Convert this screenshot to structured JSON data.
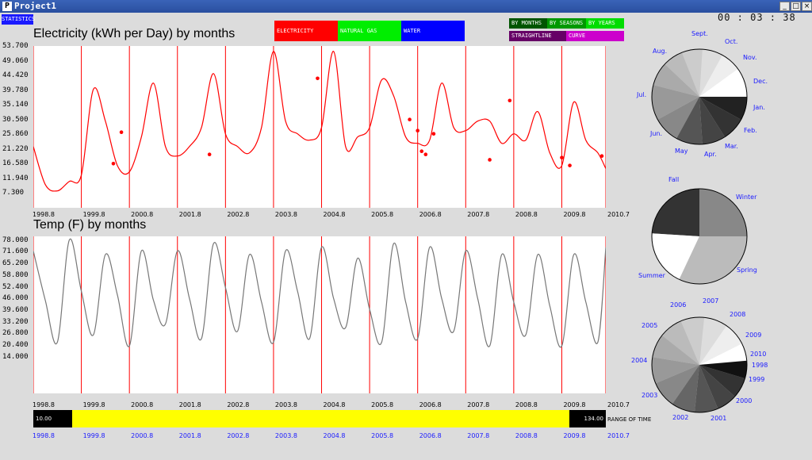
{
  "window": {
    "title": "Project1",
    "app_icon": "P",
    "controls": [
      "_",
      "□",
      "×"
    ]
  },
  "statistics_button": "STATISTICS",
  "clock": "00 : 03 : 38",
  "resource_buttons": [
    {
      "label": "ELECTRICITY",
      "color": "#ff0000"
    },
    {
      "label": "NATURAL GAS",
      "color": "#00ee00"
    },
    {
      "label": "WATER",
      "color": "#0000ff"
    }
  ],
  "mode_buttons": [
    {
      "label": "BY MONTHS",
      "color": "#005500"
    },
    {
      "label": "BY SEASONS",
      "color": "#009900"
    },
    {
      "label": "BY YEARS",
      "color": "#00dd00"
    }
  ],
  "style_buttons": [
    {
      "label": "STRAIGHTLINE",
      "color": "#660066"
    },
    {
      "label": "CURVE",
      "color": "#cc00cc"
    }
  ],
  "x_ticks": [
    "1998.8",
    "1999.8",
    "2000.8",
    "2001.8",
    "2002.8",
    "2003.8",
    "2004.8",
    "2005.8",
    "2006.8",
    "2007.8",
    "2008.8",
    "2009.8",
    "2010.7"
  ],
  "range": {
    "left": "10.00",
    "right": "134.00",
    "label": "RANGE OF TIME"
  },
  "chart_data": [
    {
      "type": "line",
      "title": "Electricity (kWh per Day) by months",
      "y_ticks": [
        "53.700",
        "49.060",
        "44.420",
        "39.780",
        "35.140",
        "30.500",
        "25.860",
        "21.220",
        "16.580",
        "11.940",
        "7.300"
      ],
      "ylim": [
        2.66,
        53.7
      ],
      "color": "#ff0000",
      "x": [
        0,
        3,
        6,
        9,
        12,
        15,
        18,
        21,
        24,
        27,
        30,
        33,
        36,
        39,
        42,
        45,
        48,
        51,
        54,
        57,
        60,
        63,
        66,
        69,
        72,
        75,
        78,
        81,
        84,
        87,
        90,
        93,
        96,
        99,
        102,
        105,
        108,
        111,
        114,
        117,
        120,
        123,
        126,
        129,
        132,
        135,
        138,
        141,
        143
      ],
      "y": [
        22,
        10,
        8,
        11,
        13,
        40,
        30,
        16,
        14,
        25,
        42,
        22,
        19,
        22,
        28,
        45,
        26,
        22,
        20,
        28,
        52,
        30,
        26,
        24,
        28,
        52,
        22,
        25,
        28,
        43,
        38,
        25,
        23,
        24,
        42,
        28,
        27,
        30,
        30,
        23,
        26,
        24,
        33,
        20,
        16,
        36,
        24,
        20,
        15
      ],
      "markers": [
        [
          20,
          16.6
        ],
        [
          22,
          26.5
        ],
        [
          44,
          19.5
        ],
        [
          71,
          43.5
        ],
        [
          94,
          30.5
        ],
        [
          96,
          27
        ],
        [
          97,
          20.5
        ],
        [
          98,
          19.5
        ],
        [
          100,
          26
        ],
        [
          114,
          17.8
        ],
        [
          119,
          36.5
        ],
        [
          132,
          18.5
        ],
        [
          134,
          16
        ],
        [
          142,
          19
        ]
      ]
    },
    {
      "type": "line",
      "title": "Temp (F) by months",
      "y_ticks": [
        "78.000",
        "71.600",
        "65.200",
        "58.800",
        "52.400",
        "46.000",
        "39.600",
        "33.200",
        "26.800",
        "20.400",
        "14.000"
      ],
      "ylim": [
        -6,
        80
      ],
      "color": "#777777",
      "x": [
        0,
        3,
        6,
        9,
        12,
        15,
        18,
        21,
        24,
        27,
        30,
        33,
        36,
        39,
        42,
        45,
        48,
        51,
        54,
        57,
        60,
        63,
        66,
        69,
        72,
        75,
        78,
        81,
        84,
        87,
        90,
        93,
        96,
        99,
        102,
        105,
        108,
        111,
        114,
        117,
        120,
        123,
        126,
        129,
        132,
        135,
        138,
        141,
        143
      ],
      "y": [
        72,
        45,
        22,
        78,
        50,
        26,
        70,
        48,
        20,
        72,
        45,
        32,
        72,
        46,
        24,
        76,
        52,
        28,
        70,
        44,
        22,
        72,
        50,
        24,
        74,
        46,
        30,
        68,
        40,
        22,
        76,
        44,
        24,
        74,
        46,
        28,
        72,
        46,
        20,
        70,
        44,
        26,
        70,
        42,
        20,
        70,
        44,
        22,
        74
      ]
    },
    {
      "type": "pie",
      "categories": [
        "Jan.",
        "Feb.",
        "Mar.",
        "Apr.",
        "May",
        "Jun.",
        "Jul.",
        "Aug.",
        "Sept.",
        "Oct.",
        "Nov.",
        "Dec."
      ],
      "values": [
        10,
        7,
        7,
        7,
        7,
        8,
        12,
        9,
        9,
        8,
        8,
        8
      ]
    },
    {
      "type": "pie",
      "categories": [
        "Winter",
        "Spring",
        "Summer",
        "Fall"
      ],
      "values": [
        24,
        19,
        32,
        25
      ]
    },
    {
      "type": "pie",
      "categories": [
        "1998",
        "1999",
        "2000",
        "2001",
        "2002",
        "2003",
        "2004",
        "2005",
        "2006",
        "2007",
        "2008",
        "2009",
        "2010"
      ],
      "values": [
        6,
        8,
        8,
        8,
        8,
        8,
        9,
        9,
        8,
        8,
        7,
        7,
        6
      ]
    }
  ],
  "pie_labels": [
    [
      "Sept.",
      "Oct.",
      "Nov.",
      "Dec.",
      "Jan.",
      "Feb.",
      "Mar.",
      "Apr.",
      "May",
      "Jun.",
      "Jul.",
      "Aug."
    ],
    [
      "Fall",
      "Winter",
      "Spring",
      "Summer"
    ],
    [
      "2006",
      "2007",
      "2008",
      "2009",
      "2010",
      "1998",
      "1999",
      "2000",
      "2001",
      "2002",
      "2003",
      "2004",
      "2005"
    ]
  ]
}
